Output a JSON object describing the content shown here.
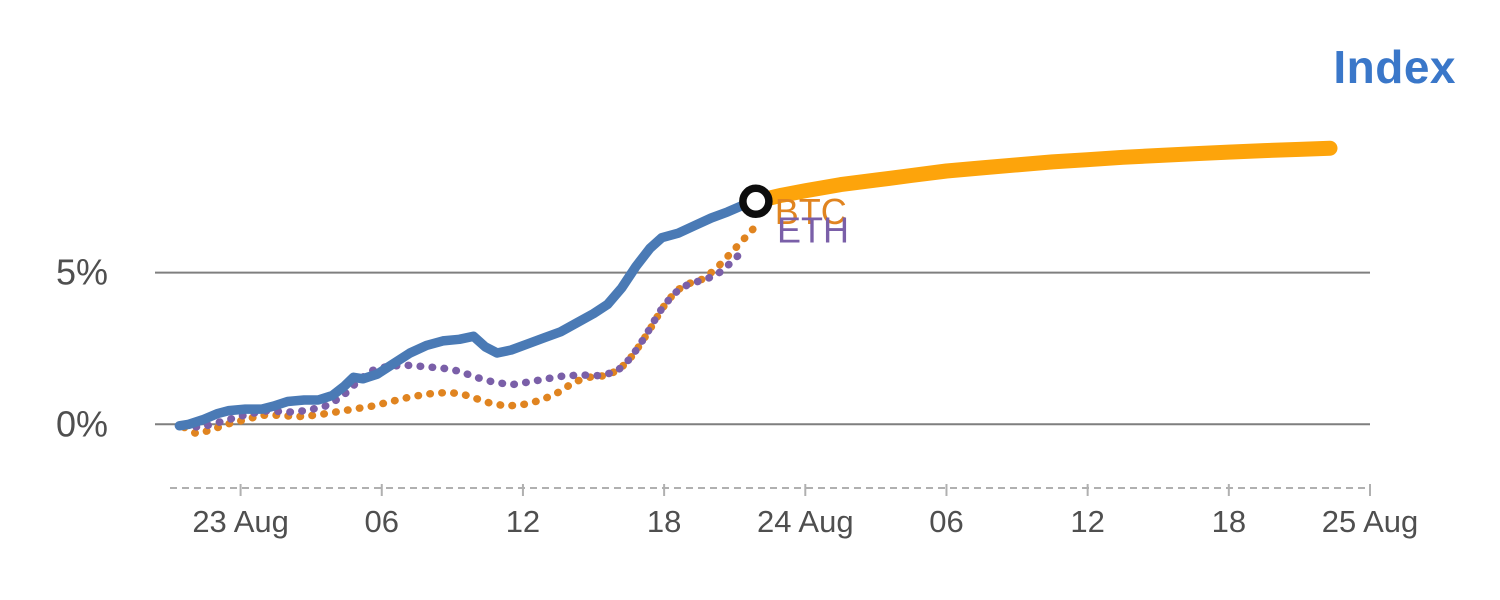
{
  "title": "Index",
  "colors": {
    "title": "#3a77c9",
    "index_line": "#4a7ab5",
    "projection_line": "#fda40b",
    "btc_line": "#e08420",
    "eth_line": "#7a5fa8",
    "gridline": "#7f7f7f",
    "axis_line": "#b0b0b0",
    "axis_text": "#4f4f4f",
    "marker_ring": "#0d0d0d",
    "marker_fill": "#ffffff"
  },
  "chart_data": {
    "type": "line",
    "title": "Index",
    "xlabel": "",
    "ylabel": "",
    "x_unit": "hours since 23 Aug 00:00",
    "xlim": [
      -3,
      48
    ],
    "ylim": [
      -2.1,
      9.7
    ],
    "grid": "horizontal only",
    "legend_position": "inline labels",
    "x_ticks": [
      {
        "pos": 0,
        "label": "23 Aug"
      },
      {
        "pos": 6,
        "label": "06"
      },
      {
        "pos": 12,
        "label": "12"
      },
      {
        "pos": 18,
        "label": "18"
      },
      {
        "pos": 24,
        "label": "24 Aug"
      },
      {
        "pos": 30,
        "label": "06"
      },
      {
        "pos": 36,
        "label": "12"
      },
      {
        "pos": 42,
        "label": "18"
      },
      {
        "pos": 48,
        "label": "25 Aug"
      }
    ],
    "y_ticks": [
      {
        "pos": 0,
        "label": "0%"
      },
      {
        "pos": 5,
        "label": "5%"
      }
    ],
    "series": [
      {
        "name": "BTC",
        "key": "btc",
        "style": "dotted",
        "width": 7.5,
        "color_key": "btc_line",
        "points": [
          [
            -2.4,
            -0.1
          ],
          [
            -1.9,
            -0.3
          ],
          [
            -1.3,
            -0.2
          ],
          [
            -0.6,
            0.0
          ],
          [
            0.2,
            0.15
          ],
          [
            0.9,
            0.3
          ],
          [
            1.6,
            0.3
          ],
          [
            2.4,
            0.25
          ],
          [
            3.2,
            0.3
          ],
          [
            4.0,
            0.4
          ],
          [
            4.8,
            0.5
          ],
          [
            5.6,
            0.6
          ],
          [
            6.4,
            0.75
          ],
          [
            7.2,
            0.9
          ],
          [
            8.0,
            1.0
          ],
          [
            8.8,
            1.05
          ],
          [
            9.4,
            1.0
          ],
          [
            10.0,
            0.85
          ],
          [
            10.6,
            0.7
          ],
          [
            11.3,
            0.6
          ],
          [
            12.0,
            0.65
          ],
          [
            12.8,
            0.8
          ],
          [
            13.5,
            1.05
          ],
          [
            14.2,
            1.4
          ],
          [
            14.8,
            1.55
          ],
          [
            15.5,
            1.6
          ],
          [
            16.1,
            1.8
          ],
          [
            16.7,
            2.3
          ],
          [
            17.3,
            3.0
          ],
          [
            17.9,
            3.8
          ],
          [
            18.5,
            4.4
          ],
          [
            19.1,
            4.65
          ],
          [
            19.7,
            4.8
          ],
          [
            20.3,
            5.2
          ],
          [
            20.9,
            5.7
          ],
          [
            21.5,
            6.2
          ],
          [
            21.8,
            6.45
          ]
        ]
      },
      {
        "name": "ETH",
        "key": "eth",
        "style": "dotted",
        "width": 7.5,
        "color_key": "eth_line",
        "points": [
          [
            -2.4,
            -0.05
          ],
          [
            -1.7,
            -0.1
          ],
          [
            -1.0,
            0.05
          ],
          [
            -0.3,
            0.2
          ],
          [
            0.4,
            0.35
          ],
          [
            1.2,
            0.45
          ],
          [
            2.0,
            0.4
          ],
          [
            2.8,
            0.45
          ],
          [
            3.6,
            0.6
          ],
          [
            4.3,
            0.9
          ],
          [
            4.9,
            1.35
          ],
          [
            5.5,
            1.75
          ],
          [
            6.2,
            1.9
          ],
          [
            7.0,
            1.95
          ],
          [
            7.8,
            1.9
          ],
          [
            8.6,
            1.85
          ],
          [
            9.3,
            1.75
          ],
          [
            10.0,
            1.55
          ],
          [
            10.7,
            1.4
          ],
          [
            11.5,
            1.3
          ],
          [
            12.3,
            1.4
          ],
          [
            13.0,
            1.5
          ],
          [
            13.8,
            1.6
          ],
          [
            14.6,
            1.62
          ],
          [
            15.3,
            1.6
          ],
          [
            16.0,
            1.75
          ],
          [
            16.6,
            2.2
          ],
          [
            17.2,
            2.9
          ],
          [
            17.8,
            3.7
          ],
          [
            18.4,
            4.3
          ],
          [
            19.0,
            4.6
          ],
          [
            19.6,
            4.75
          ],
          [
            20.2,
            4.9
          ],
          [
            20.8,
            5.3
          ],
          [
            21.4,
            5.75
          ]
        ]
      },
      {
        "name": "Index (history)",
        "key": "index-history",
        "style": "solid",
        "width": 9.5,
        "color_key": "index_line",
        "points": [
          [
            -2.6,
            -0.05
          ],
          [
            -2.2,
            0.0
          ],
          [
            -1.6,
            0.15
          ],
          [
            -1.0,
            0.35
          ],
          [
            -0.5,
            0.45
          ],
          [
            0.2,
            0.5
          ],
          [
            0.9,
            0.5
          ],
          [
            1.4,
            0.6
          ],
          [
            2.0,
            0.75
          ],
          [
            2.7,
            0.8
          ],
          [
            3.3,
            0.8
          ],
          [
            3.9,
            0.95
          ],
          [
            4.4,
            1.25
          ],
          [
            4.8,
            1.55
          ],
          [
            5.2,
            1.5
          ],
          [
            5.8,
            1.65
          ],
          [
            6.5,
            2.0
          ],
          [
            7.2,
            2.35
          ],
          [
            7.9,
            2.6
          ],
          [
            8.6,
            2.75
          ],
          [
            9.3,
            2.8
          ],
          [
            9.9,
            2.9
          ],
          [
            10.4,
            2.55
          ],
          [
            10.9,
            2.35
          ],
          [
            11.5,
            2.45
          ],
          [
            12.2,
            2.65
          ],
          [
            12.9,
            2.85
          ],
          [
            13.6,
            3.05
          ],
          [
            14.3,
            3.35
          ],
          [
            15.0,
            3.65
          ],
          [
            15.6,
            3.95
          ],
          [
            16.2,
            4.5
          ],
          [
            16.8,
            5.2
          ],
          [
            17.4,
            5.8
          ],
          [
            17.9,
            6.15
          ],
          [
            18.6,
            6.3
          ],
          [
            19.3,
            6.55
          ],
          [
            20.0,
            6.8
          ],
          [
            20.7,
            7.0
          ],
          [
            21.3,
            7.2
          ],
          [
            21.9,
            7.35
          ]
        ]
      },
      {
        "name": "Index (projection)",
        "key": "index-projection",
        "style": "solid",
        "width": 15,
        "color_key": "projection_line",
        "points": [
          [
            21.9,
            7.35
          ],
          [
            23.0,
            7.55
          ],
          [
            24.0,
            7.7
          ],
          [
            25.5,
            7.9
          ],
          [
            27.0,
            8.05
          ],
          [
            28.5,
            8.2
          ],
          [
            30.0,
            8.35
          ],
          [
            31.5,
            8.45
          ],
          [
            33.0,
            8.55
          ],
          [
            34.5,
            8.65
          ],
          [
            36.0,
            8.72
          ],
          [
            37.5,
            8.8
          ],
          [
            39.0,
            8.86
          ],
          [
            40.5,
            8.92
          ],
          [
            42.0,
            8.97
          ],
          [
            43.5,
            9.02
          ],
          [
            45.0,
            9.06
          ],
          [
            46.3,
            9.1
          ]
        ]
      }
    ],
    "marker": {
      "x": 21.9,
      "y": 7.35,
      "radius": 13
    },
    "labels": [
      {
        "text": "BTC",
        "x": 22.7,
        "y": 7.0,
        "color_key": "btc_line"
      },
      {
        "text": "ETH",
        "x": 22.8,
        "y": 6.38,
        "color_key": "eth_line"
      }
    ]
  }
}
